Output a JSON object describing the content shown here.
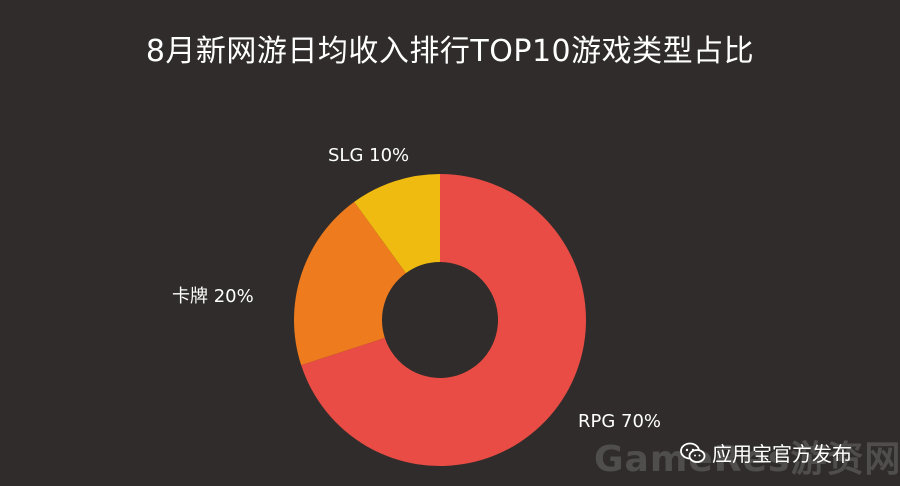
{
  "title": "8月新网游日均收入排行TOP10游戏类型占比",
  "publisher": {
    "icon": "wechat-icon",
    "text": "应用宝官方发布"
  },
  "watermark": {
    "text": "GameRes游资网"
  },
  "chart_data": {
    "type": "pie",
    "subtype": "donut",
    "title": "8月新网游日均收入排行TOP10游戏类型占比",
    "slices": [
      {
        "label": "RPG",
        "value": 70,
        "display": "RPG 70%",
        "color": "#e84c44"
      },
      {
        "label": "卡牌",
        "value": 20,
        "display": "卡牌 20%",
        "color": "#ee7b1d"
      },
      {
        "label": "SLG",
        "value": 10,
        "display": "SLG 10%",
        "color": "#f0bb10"
      }
    ],
    "start_angle_deg": 0,
    "direction": "clockwise",
    "legend": "none",
    "labels": "outside"
  }
}
